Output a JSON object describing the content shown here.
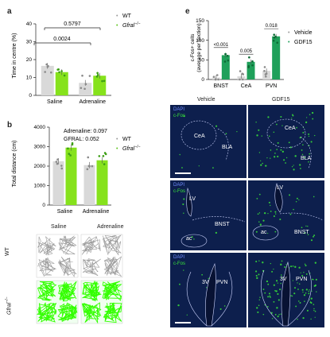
{
  "panels": {
    "a": "a",
    "b": "b",
    "e": "e"
  },
  "legend": {
    "wt": "WT",
    "gfral": "Gfral"
  },
  "panel_a": {
    "ylabel": "Time in centre (%)",
    "groups": [
      "Saline",
      "Adrenaline"
    ],
    "p1": "0.5797",
    "p2": "0.0024"
  },
  "panel_b": {
    "ylabel": "Total distance (cm)",
    "stats": [
      "Adrenaline: 0.097",
      "GFRAL: 0.052"
    ],
    "groups": [
      "Saline",
      "Adrenaline"
    ],
    "track_cols": [
      "Saline",
      "Adrenaline"
    ],
    "track_rows": [
      "WT",
      "Gfral"
    ]
  },
  "panel_e": {
    "ylabel1": "c-Fos+ cells",
    "ylabel2": "(average per section)",
    "groups": [
      "BNST",
      "CeA",
      "PVN"
    ],
    "pvalues": [
      "<0.001",
      "0.005",
      "0.018"
    ],
    "legend": [
      "Vehicle",
      "GDF15"
    ],
    "col_titles": [
      "Vehicle",
      "GDF15"
    ],
    "row1_labels": [
      "CeA",
      "BLA"
    ],
    "row2_labels": [
      "LV",
      "BNST",
      "ac"
    ],
    "row3_labels": [
      "3V",
      "PVN"
    ],
    "stain1": "DAPI",
    "stain2": "c-Fos"
  },
  "chart_data": [
    {
      "type": "bar",
      "title": "",
      "ylabel": "Time in centre (%)",
      "categories": [
        "Saline",
        "Adrenaline"
      ],
      "series": [
        {
          "name": "WT",
          "values": [
            16.5,
            7
          ]
        },
        {
          "name": "Gfral-/-",
          "values": [
            13,
            11
          ]
        }
      ],
      "ylim": [
        0,
        40
      ],
      "yticks": [
        0,
        10,
        20,
        30,
        40
      ]
    },
    {
      "type": "bar",
      "title": "",
      "ylabel": "Total distance (cm)",
      "categories": [
        "Saline",
        "Adrenaline"
      ],
      "series": [
        {
          "name": "WT",
          "values": [
            2250,
            2050
          ]
        },
        {
          "name": "Gfral-/-",
          "values": [
            2950,
            2300
          ]
        }
      ],
      "ylim": [
        0,
        4000
      ],
      "yticks": [
        0,
        1000,
        2000,
        3000,
        4000
      ]
    },
    {
      "type": "bar",
      "title": "",
      "ylabel": "c-Fos+ cells (average per section)",
      "categories": [
        "BNST",
        "CeA",
        "PVN"
      ],
      "series": [
        {
          "name": "Vehicle",
          "values": [
            5,
            8,
            22
          ]
        },
        {
          "name": "GDF15",
          "values": [
            62,
            45,
            110
          ]
        }
      ],
      "ylim": [
        0,
        150
      ],
      "yticks": [
        0,
        50,
        100,
        150
      ]
    }
  ],
  "colors": {
    "wt": "#c8c8c8",
    "gfral": "#86e21c",
    "gdf15": "#1fa05a",
    "vehicle": "#c8c8c8",
    "tissue": "#0d1f4d",
    "track_green": "#33ff00"
  }
}
